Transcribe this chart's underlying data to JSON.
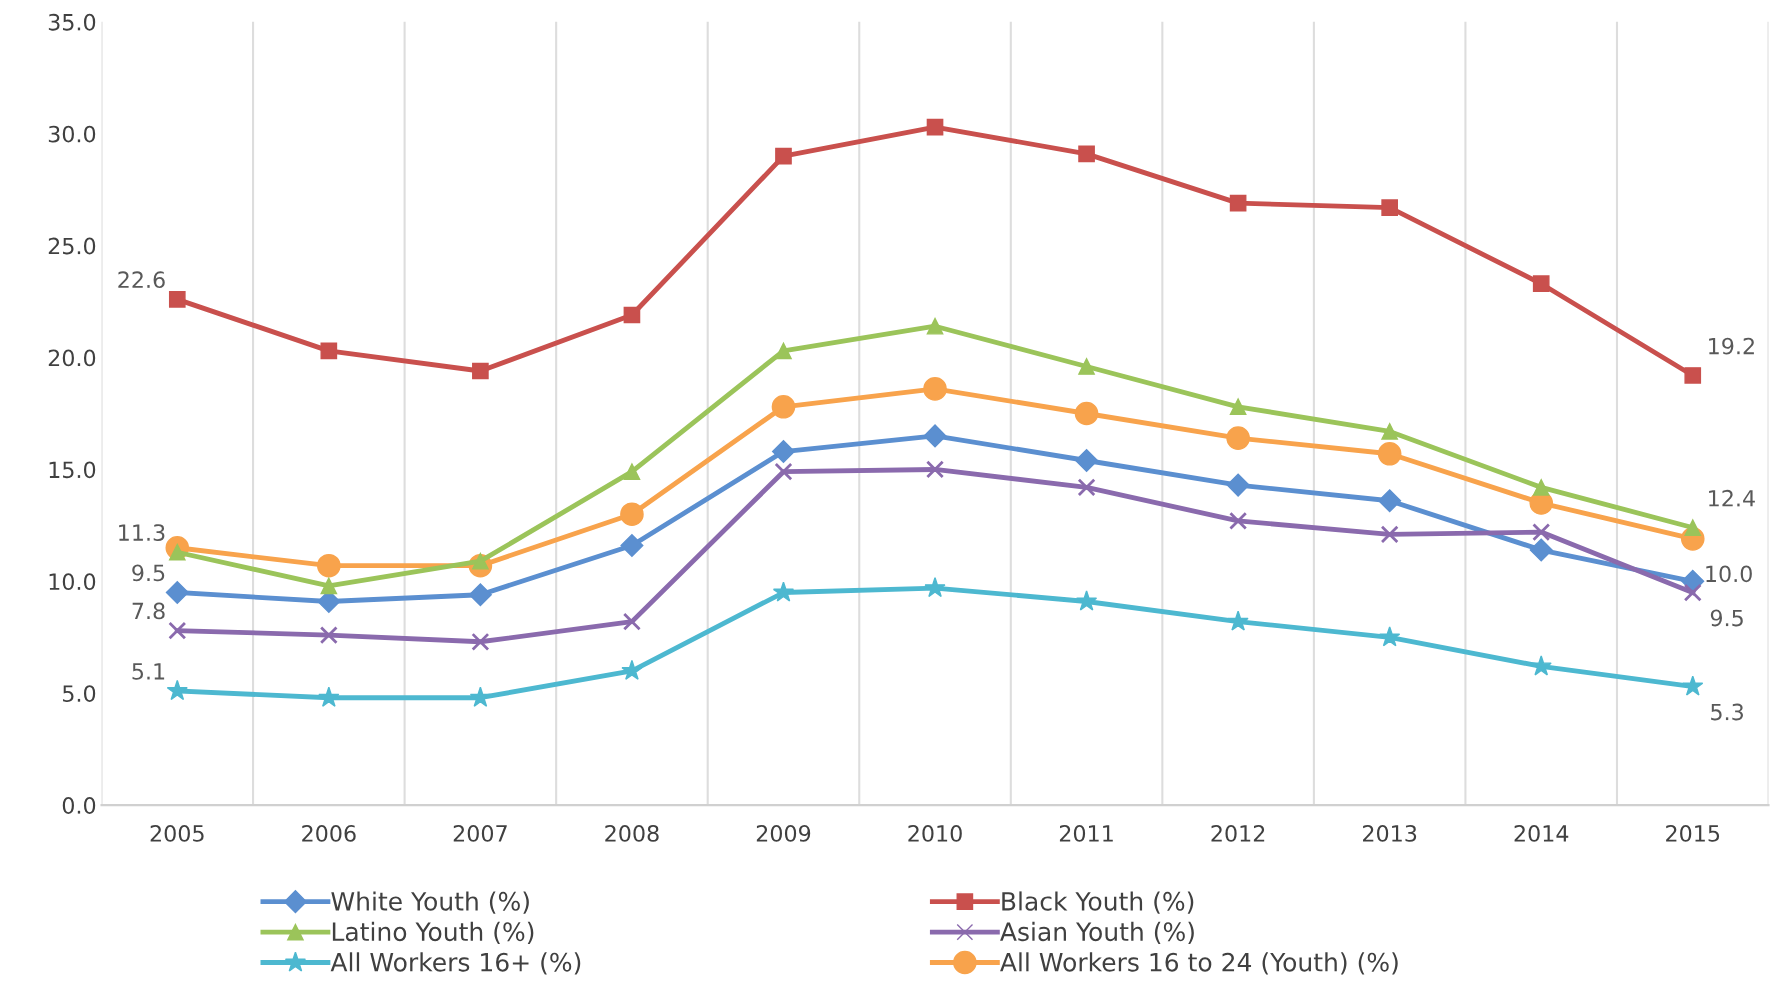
{
  "chart_data": {
    "type": "line",
    "categories": [
      "2005",
      "2006",
      "2007",
      "2008",
      "2009",
      "2010",
      "2011",
      "2012",
      "2013",
      "2014",
      "2015"
    ],
    "ylim": [
      0,
      35
    ],
    "yticks": [
      {
        "value": 0,
        "label": "0.0"
      },
      {
        "value": 5,
        "label": "5.0"
      },
      {
        "value": 10,
        "label": "10.0"
      },
      {
        "value": 15,
        "label": "15.0"
      },
      {
        "value": 20,
        "label": "20.0"
      },
      {
        "value": 25,
        "label": "25.0"
      },
      {
        "value": 30,
        "label": "30.0"
      },
      {
        "value": 35,
        "label": "35.0"
      }
    ],
    "grid": "x",
    "legend": "bottom",
    "series": [
      {
        "name": "White Youth (%)",
        "color": "#5b8fd0",
        "marker": "diamond",
        "values": [
          9.5,
          9.1,
          9.4,
          11.6,
          15.8,
          16.5,
          15.4,
          14.3,
          13.6,
          11.4,
          10.0
        ],
        "value_labels": [
          "9.5",
          null,
          null,
          null,
          null,
          null,
          null,
          null,
          null,
          null,
          "10.0"
        ]
      },
      {
        "name": "Black Youth (%)",
        "color": "#c9504d",
        "marker": "square",
        "values": [
          22.6,
          20.3,
          19.4,
          21.9,
          29.0,
          30.3,
          29.1,
          26.9,
          26.7,
          23.3,
          19.2
        ],
        "value_labels": [
          "22.6",
          null,
          null,
          null,
          null,
          null,
          null,
          null,
          null,
          null,
          "19.2"
        ]
      },
      {
        "name": "Latino Youth (%)",
        "color": "#9bc45a",
        "marker": "triangle",
        "values": [
          11.3,
          9.8,
          10.9,
          14.9,
          20.3,
          21.4,
          19.6,
          17.8,
          16.7,
          14.2,
          12.4
        ],
        "value_labels": [
          "11.3",
          null,
          null,
          null,
          null,
          null,
          null,
          null,
          null,
          null,
          "12.4"
        ]
      },
      {
        "name": "Asian Youth (%)",
        "color": "#8a6aad",
        "marker": "cross",
        "values": [
          7.8,
          7.6,
          7.3,
          8.2,
          14.9,
          15.0,
          14.2,
          12.7,
          12.1,
          12.2,
          9.5
        ],
        "value_labels": [
          "7.8",
          null,
          null,
          null,
          null,
          null,
          null,
          null,
          null,
          null,
          "9.5"
        ]
      },
      {
        "name": "All Workers 16+ (%)",
        "color": "#4db8d0",
        "marker": "star",
        "values": [
          5.1,
          4.8,
          4.8,
          6.0,
          9.5,
          9.7,
          9.1,
          8.2,
          7.5,
          6.2,
          5.3
        ],
        "value_labels": [
          "5.1",
          null,
          null,
          null,
          null,
          null,
          null,
          null,
          null,
          null,
          "5.3"
        ]
      },
      {
        "name": "All Workers 16 to 24 (Youth) (%)",
        "color": "#f8a34c",
        "marker": "circle",
        "values": [
          11.5,
          10.7,
          10.7,
          13.0,
          17.8,
          18.6,
          17.5,
          16.4,
          15.7,
          13.5,
          11.9
        ]
      }
    ]
  }
}
